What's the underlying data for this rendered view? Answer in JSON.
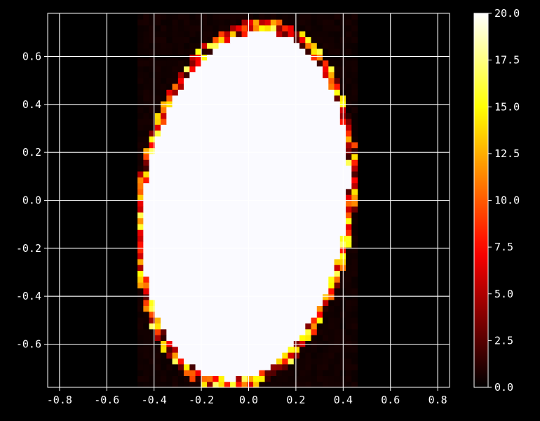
{
  "chart_data": {
    "type": "heatmap",
    "title": "",
    "xlabel": "",
    "ylabel": "",
    "xlim": [
      -0.85,
      0.85
    ],
    "ylim": [
      -0.78,
      0.78
    ],
    "x_ticks": [
      -0.8,
      -0.6,
      -0.4,
      -0.2,
      0.0,
      0.2,
      0.4,
      0.6,
      0.8
    ],
    "x_tick_labels": [
      "-0.8",
      "-0.6",
      "-0.4",
      "-0.2",
      "0.0",
      "0.2",
      "0.4",
      "0.6",
      "0.8"
    ],
    "y_ticks": [
      0.6,
      0.4,
      0.2,
      0.0,
      -0.2,
      -0.4,
      -0.6
    ],
    "y_tick_labels": [
      "0.6",
      "0.4",
      "0.2",
      "0.0",
      "-0.2",
      "-0.4",
      "-0.6"
    ],
    "grid": true,
    "colormap": "hot",
    "colorbar": {
      "min": 0.0,
      "max": 20.0,
      "ticks": [
        0.0,
        2.5,
        5.0,
        7.5,
        10.0,
        12.5,
        15.0,
        17.5,
        20.0
      ],
      "tick_labels": [
        "0.0",
        "2.5",
        "5.0",
        "7.5",
        "10.0",
        "12.5",
        "15.0",
        "17.5",
        "20.0"
      ]
    },
    "data_extent_x": [
      -0.47,
      0.46
    ],
    "data_extent_y": [
      -0.78,
      0.78
    ],
    "grid_size": [
      38,
      64
    ],
    "background_value": 0.3,
    "ellipse": {
      "center_x": -0.013,
      "center_y": -0.02,
      "semi_axis_x": 0.445,
      "semi_axis_y": 0.755,
      "tilt_deg": -8,
      "inside_value": 20
    },
    "boundary_band_value_range": [
      1,
      17
    ],
    "highlight_color": "#fafaff"
  }
}
